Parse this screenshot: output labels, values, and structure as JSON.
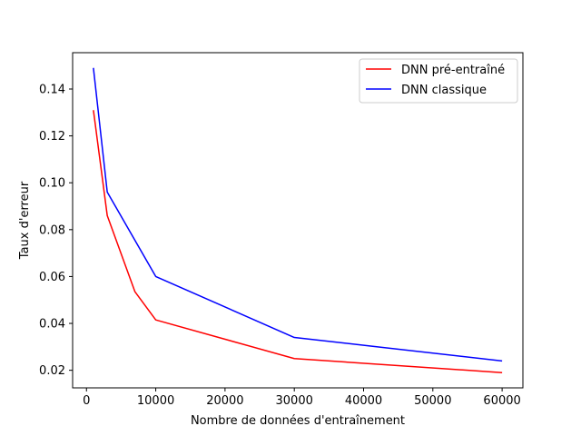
{
  "chart_data": {
    "type": "line",
    "title": "",
    "xlabel": "Nombre de données d'entraînement",
    "ylabel": "Taux d'erreur",
    "xlim": [
      -2000,
      63000
    ],
    "ylim": [
      0.0125,
      0.1555
    ],
    "xticks": [
      {
        "value": 0,
        "label": "0"
      },
      {
        "value": 10000,
        "label": "10000"
      },
      {
        "value": 20000,
        "label": "20000"
      },
      {
        "value": 30000,
        "label": "30000"
      },
      {
        "value": 40000,
        "label": "40000"
      },
      {
        "value": 50000,
        "label": "50000"
      },
      {
        "value": 60000,
        "label": "60000"
      }
    ],
    "yticks": [
      {
        "value": 0.02,
        "label": "0.02"
      },
      {
        "value": 0.04,
        "label": "0.04"
      },
      {
        "value": 0.06,
        "label": "0.06"
      },
      {
        "value": 0.08,
        "label": "0.08"
      },
      {
        "value": 0.1,
        "label": "0.10"
      },
      {
        "value": 0.12,
        "label": "0.12"
      },
      {
        "value": 0.14,
        "label": "0.14"
      }
    ],
    "grid": false,
    "legend_position": "top-right",
    "series": [
      {
        "name": "DNN pré-entraîné",
        "color": "#ff0000",
        "x": [
          1000,
          3000,
          7000,
          10000,
          30000,
          60000
        ],
        "y": [
          0.131,
          0.086,
          0.0535,
          0.0415,
          0.025,
          0.019
        ]
      },
      {
        "name": "DNN classique",
        "color": "#0000ff",
        "x": [
          1000,
          3000,
          10000,
          30000,
          60000
        ],
        "y": [
          0.149,
          0.096,
          0.06,
          0.034,
          0.024
        ]
      }
    ]
  }
}
